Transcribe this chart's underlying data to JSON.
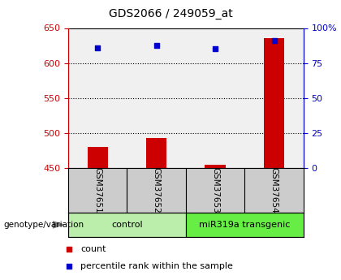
{
  "title": "GDS2066 / 249059_at",
  "samples": [
    "GSM37651",
    "GSM37652",
    "GSM37653",
    "GSM37654"
  ],
  "bar_values": [
    480,
    493,
    455,
    635
  ],
  "scatter_values": [
    622,
    625,
    620,
    632
  ],
  "bar_color": "#cc0000",
  "scatter_color": "#0000cc",
  "ylim_left": [
    450,
    650
  ],
  "yticks_left": [
    450,
    500,
    550,
    600,
    650
  ],
  "ylim_right": [
    0,
    100
  ],
  "yticks_right": [
    0,
    25,
    50,
    75,
    100
  ],
  "grid_values": [
    500,
    550,
    600
  ],
  "groups": [
    {
      "label": "control",
      "n_samples": 2,
      "color": "#bbeeaa"
    },
    {
      "label": "miR319a transgenic",
      "n_samples": 2,
      "color": "#66ee44"
    }
  ],
  "left_axis_color": "#cc0000",
  "right_axis_color": "#0000cc",
  "legend_count_label": "count",
  "legend_percentile_label": "percentile rank within the sample",
  "genotype_label": "genotype/variation",
  "bar_width": 0.35,
  "background_color": "#ffffff",
  "plot_bg_color": "#f0f0f0",
  "sample_box_color": "#cccccc"
}
